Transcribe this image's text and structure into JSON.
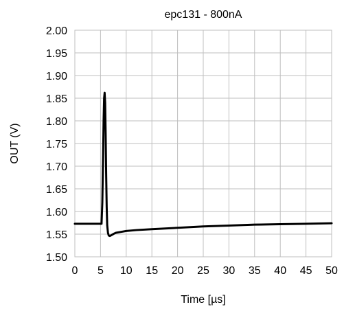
{
  "chart_data": {
    "type": "line",
    "title": "epc131 - 800nA",
    "xlabel": "Time [µs]",
    "ylabel": "OUT (V)",
    "xlim": [
      0,
      50
    ],
    "ylim": [
      1.5,
      2.0
    ],
    "x_ticks": [
      "0",
      "5",
      "10",
      "15",
      "20",
      "25",
      "30",
      "35",
      "40",
      "45",
      "50"
    ],
    "y_ticks": [
      "1.50",
      "1.55",
      "1.60",
      "1.65",
      "1.70",
      "1.75",
      "1.80",
      "1.85",
      "1.90",
      "1.95",
      "2.00"
    ],
    "grid": true,
    "line_color": "#000000",
    "grid_color": "#bfbfbf",
    "series": [
      {
        "x": [
          0,
          5.2,
          5.35,
          5.5,
          5.6,
          5.7,
          5.8,
          5.9,
          6.0,
          6.1,
          6.2,
          6.3,
          6.45,
          6.6,
          6.8,
          7.0,
          7.3,
          7.6,
          8,
          9,
          10,
          12,
          15,
          20,
          25,
          30,
          35,
          40,
          45,
          50
        ],
        "y": [
          1.573,
          1.573,
          1.62,
          1.72,
          1.8,
          1.85,
          1.862,
          1.84,
          1.77,
          1.68,
          1.61,
          1.57,
          1.553,
          1.547,
          1.546,
          1.547,
          1.549,
          1.551,
          1.553,
          1.555,
          1.557,
          1.559,
          1.561,
          1.564,
          1.567,
          1.569,
          1.571,
          1.572,
          1.573,
          1.574
        ]
      }
    ]
  }
}
